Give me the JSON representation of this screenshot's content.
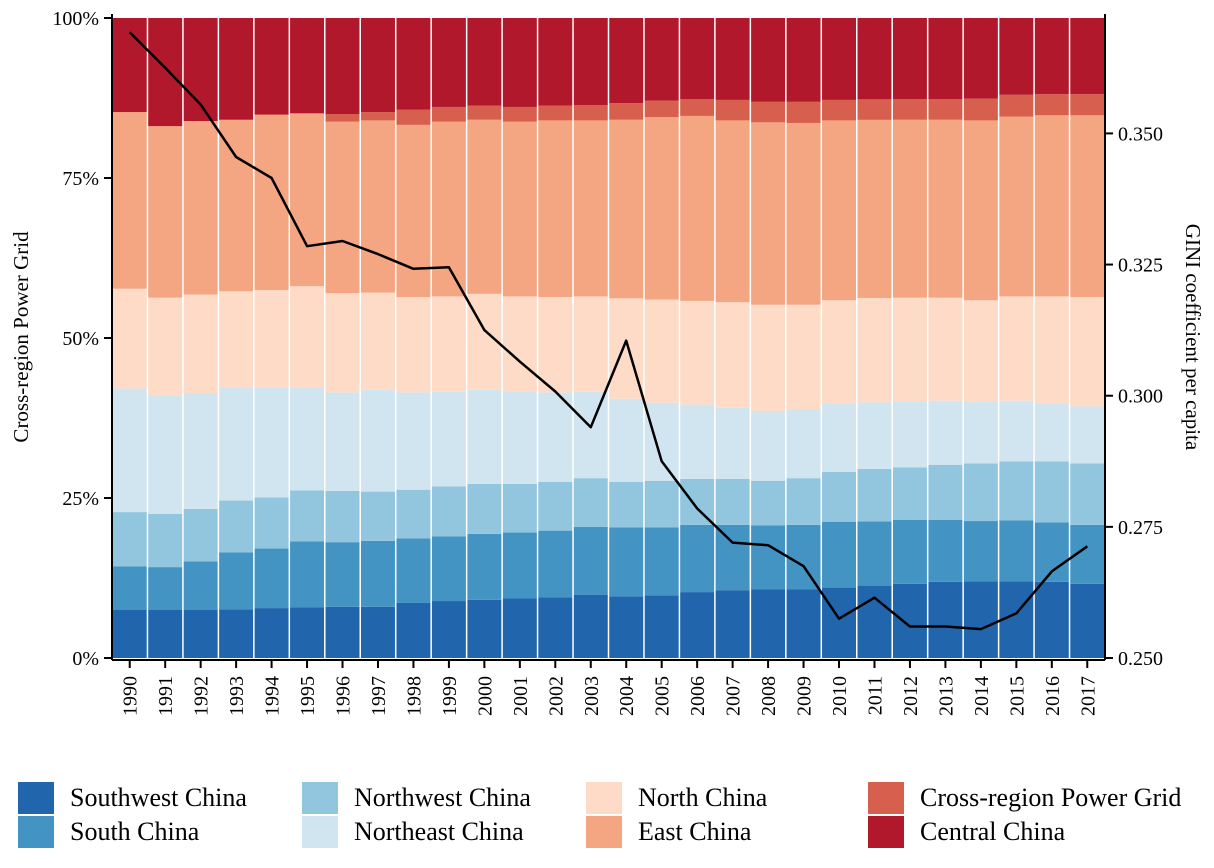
{
  "chart_data": {
    "type": "bar",
    "stacked": true,
    "normalized": true,
    "categories": [
      "1990",
      "1991",
      "1992",
      "1993",
      "1994",
      "1995",
      "1996",
      "1997",
      "1998",
      "1999",
      "2000",
      "2001",
      "2002",
      "2003",
      "2004",
      "2005",
      "2006",
      "2007",
      "2008",
      "2009",
      "2010",
      "2011",
      "2012",
      "2013",
      "2014",
      "2015",
      "2016",
      "2017"
    ],
    "series": [
      {
        "name": "Southwest China",
        "color": "#2166ac",
        "values": [
          7.5,
          7.5,
          7.5,
          7.6,
          7.8,
          7.9,
          8.0,
          8.0,
          8.6,
          8.9,
          9.1,
          9.3,
          9.5,
          9.9,
          9.6,
          9.8,
          10.3,
          10.6,
          10.7,
          10.7,
          11.0,
          11.3,
          11.6,
          11.9,
          12.0,
          12.0,
          11.9,
          11.6
        ]
      },
      {
        "name": "South China",
        "color": "#4393c3",
        "values": [
          6.8,
          6.7,
          7.6,
          8.9,
          9.3,
          10.3,
          10.1,
          10.3,
          10.1,
          10.1,
          10.3,
          10.3,
          10.4,
          10.6,
          10.8,
          10.6,
          10.5,
          10.2,
          10.0,
          10.1,
          10.3,
          10.0,
          10.0,
          9.7,
          9.4,
          9.5,
          9.3,
          9.2
        ]
      },
      {
        "name": "Northwest China",
        "color": "#92c5de",
        "values": [
          8.5,
          8.3,
          8.2,
          8.1,
          8.0,
          8.0,
          8.0,
          7.7,
          7.6,
          7.8,
          7.8,
          7.6,
          7.6,
          7.6,
          7.1,
          7.3,
          7.2,
          7.2,
          7.0,
          7.3,
          7.8,
          8.2,
          8.2,
          8.6,
          9.0,
          9.2,
          9.5,
          9.6
        ]
      },
      {
        "name": "Northeast China",
        "color": "#d1e5f0",
        "values": [
          19.3,
          18.5,
          18.1,
          17.6,
          17.1,
          16.1,
          15.4,
          15.9,
          15.2,
          14.8,
          14.7,
          14.5,
          14.0,
          13.5,
          13.0,
          12.2,
          11.6,
          11.1,
          10.9,
          10.8,
          10.6,
          10.4,
          10.2,
          10.0,
          9.6,
          9.5,
          9.1,
          8.9
        ]
      },
      {
        "name": "North China",
        "color": "#fddbc7",
        "values": [
          15.6,
          15.3,
          15.4,
          15.1,
          15.3,
          15.8,
          15.5,
          15.2,
          14.9,
          14.9,
          15.0,
          14.8,
          14.9,
          14.9,
          15.7,
          16.1,
          16.2,
          16.5,
          16.6,
          16.3,
          16.2,
          16.3,
          16.3,
          16.1,
          15.9,
          16.3,
          16.7,
          17.1
        ]
      },
      {
        "name": "East China",
        "color": "#f4a582",
        "values": [
          27.6,
          26.8,
          27.1,
          26.8,
          27.4,
          27.0,
          26.8,
          26.9,
          26.9,
          27.3,
          27.2,
          27.3,
          27.6,
          27.5,
          27.9,
          28.5,
          28.9,
          28.4,
          28.5,
          28.4,
          28.1,
          27.8,
          27.8,
          27.8,
          28.1,
          28.1,
          28.3,
          28.4
        ]
      },
      {
        "name": "Cross-region Power Grid",
        "color": "#d6604d",
        "values": [
          0,
          0,
          0,
          0,
          0,
          0,
          1.2,
          1.3,
          2.4,
          2.3,
          2.2,
          2.3,
          2.3,
          2.4,
          2.6,
          2.6,
          2.6,
          3.2,
          3.2,
          3.3,
          3.2,
          3.2,
          3.2,
          3.2,
          3.4,
          3.4,
          3.3,
          3.3
        ]
      },
      {
        "name": "Central China",
        "color": "#b2182b",
        "values": [
          14.7,
          16.9,
          16.1,
          15.9,
          15.1,
          14.9,
          15.0,
          14.7,
          14.3,
          13.9,
          13.7,
          13.9,
          13.7,
          13.6,
          13.3,
          12.9,
          12.7,
          12.8,
          13.1,
          13.1,
          12.8,
          12.7,
          12.7,
          12.7,
          12.6,
          12.0,
          11.9,
          11.9
        ]
      }
    ],
    "line": {
      "name": "GINI coefficient per capita",
      "color": "#000000",
      "values": [
        0.3693,
        0.3625,
        0.3555,
        0.3455,
        0.3415,
        0.3285,
        0.3295,
        0.327,
        0.3242,
        0.3245,
        0.3125,
        0.3065,
        0.3008,
        0.294,
        0.3105,
        0.2875,
        0.2785,
        0.272,
        0.2715,
        0.2675,
        0.2575,
        0.2615,
        0.256,
        0.256,
        0.2555,
        0.2585,
        0.2665,
        0.2713
      ]
    },
    "ylabel": "Cross-region Power Grid",
    "y2label": "GINI coefficient per capita",
    "ylim": [
      0,
      100
    ],
    "y2lim": [
      0.25,
      0.372
    ],
    "yticks": [
      "0%",
      "25%",
      "50%",
      "75%",
      "100%"
    ],
    "y2ticks": [
      "0.250",
      "0.275",
      "0.300",
      "0.325",
      "0.350"
    ],
    "y2tick_values": [
      0.25,
      0.275,
      0.3,
      0.325,
      0.35
    ],
    "legend_position": "bottom",
    "grid": false
  }
}
